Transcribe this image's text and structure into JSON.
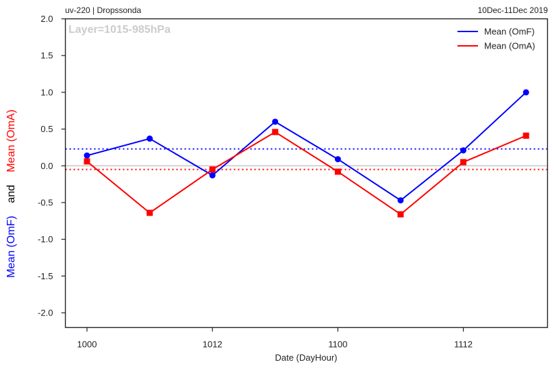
{
  "header": {
    "left": "uv-220  |  Dropssonda",
    "right": "10Dec-11Dec 2019"
  },
  "annotation": "Layer=1015-985hPa",
  "colors": {
    "omf": "#0000ff",
    "oma": "#ff0000",
    "zero_line": "#c8c8c8",
    "annotation": "#cccccc"
  },
  "chart_data": {
    "type": "line",
    "xlabel": "Date (DayHour)",
    "ylabel_parts": [
      "Mean (OmF)",
      "and",
      "Mean (OmA)"
    ],
    "x_ticks": [
      "1000",
      "1012",
      "1100",
      "1112"
    ],
    "x_points": [
      "1000",
      "1006",
      "1012",
      "1018",
      "1100",
      "1106",
      "1112",
      "1118"
    ],
    "ylim": [
      -2.2,
      2.0
    ],
    "y_ticks": [
      "2.0",
      "1.5",
      "1.0",
      "0.5",
      "0.0",
      "-0.5",
      "-1.0",
      "-1.5",
      "-2.0"
    ],
    "grid": false,
    "legend_position": "top-right",
    "series": [
      {
        "name": "Mean (OmF)",
        "color": "#0000ff",
        "marker": "circle",
        "values": [
          0.14,
          0.37,
          -0.13,
          0.6,
          0.09,
          -0.47,
          0.21,
          1.0
        ],
        "mean": 0.23
      },
      {
        "name": "Mean (OmA)",
        "color": "#ff0000",
        "marker": "square",
        "values": [
          0.06,
          -0.64,
          -0.05,
          0.46,
          -0.08,
          -0.66,
          0.05,
          0.41
        ],
        "mean": -0.05
      }
    ]
  }
}
